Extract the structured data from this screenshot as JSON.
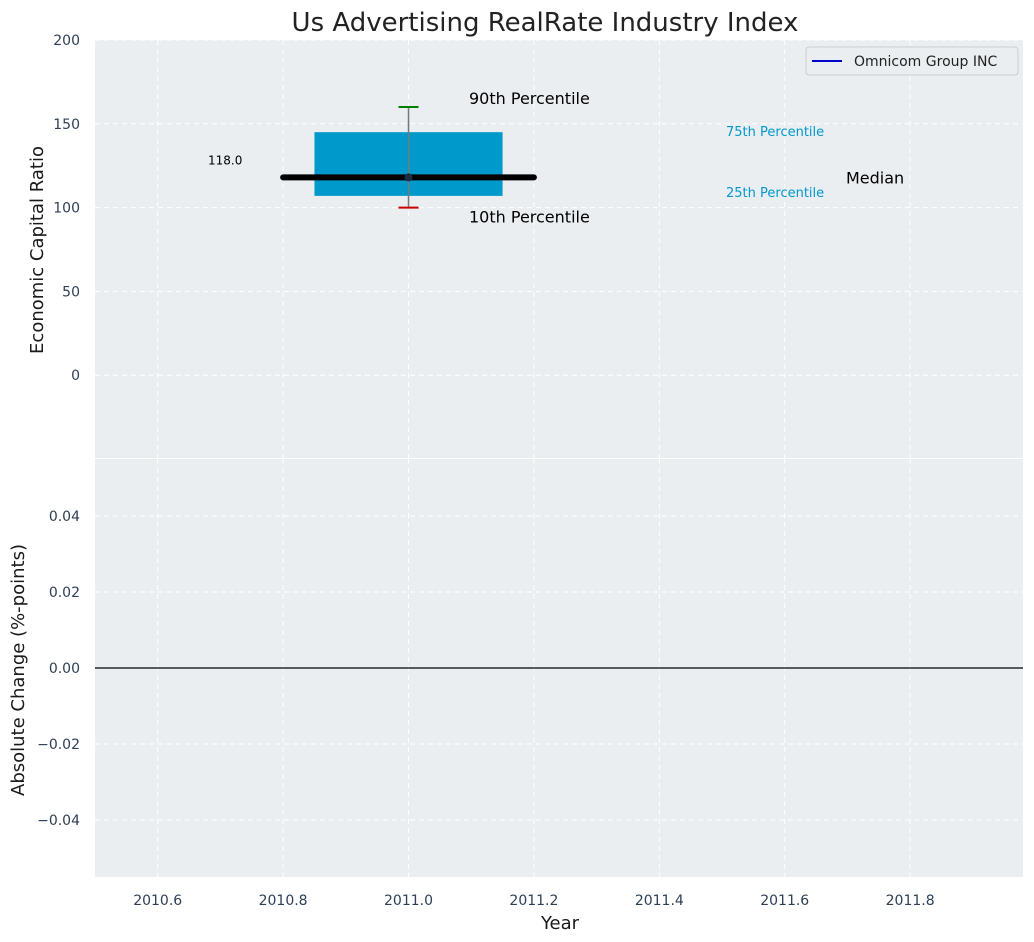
{
  "chart_data": [
    {
      "type": "box",
      "title": "Us Advertising RealRate Industry Index",
      "ylabel": "Economic Capital Ratio",
      "ylim": [
        -50,
        200
      ],
      "yticks": [
        0,
        50,
        100,
        150,
        200
      ],
      "ytick_labels": [
        "0",
        "50",
        "100",
        "150",
        "200"
      ],
      "xlim": [
        2010.5,
        2011.98
      ],
      "grid": true,
      "box": {
        "x": 2011.0,
        "p10": 100,
        "p25": 107,
        "median": 118,
        "p75": 145,
        "p90": 160,
        "x_left": 2010.85,
        "x_right": 2011.15,
        "color": "#0099cc"
      },
      "series": [
        {
          "name": "Omnicom Group INC",
          "x": [
            2010.8,
            2011.0,
            2011.2
          ],
          "y": [
            118,
            118,
            118
          ],
          "color": "#000000",
          "legend_color": "#0000cc"
        }
      ],
      "value_label": "118.0",
      "annotations": {
        "p90": "90th Percentile",
        "p10": "10th Percentile",
        "p75": "75th Percentile",
        "p25": "25th Percentile",
        "median": "Median"
      },
      "legend": {
        "position": "top-right",
        "entries": [
          "Omnicom Group INC"
        ]
      },
      "colors": {
        "p90_cap": "#008000",
        "p10_cap": "#cc0000",
        "percentile_text": "#0099cc",
        "background": "#eaeef0"
      }
    },
    {
      "type": "line",
      "xlabel": "Year",
      "ylabel": "Absolute Change (%-points)",
      "ylim": [
        -0.055,
        0.055
      ],
      "yticks": [
        -0.04,
        -0.02,
        0.0,
        0.02,
        0.04
      ],
      "ytick_labels": [
        "−0.04",
        "−0.02",
        "0.00",
        "0.02",
        "0.04"
      ],
      "xlim": [
        2010.5,
        2011.98
      ],
      "xticks": [
        2010.6,
        2010.8,
        2011.0,
        2011.2,
        2011.4,
        2011.6,
        2011.8
      ],
      "xtick_labels": [
        "2010.6",
        "2010.8",
        "2011.0",
        "2011.2",
        "2011.4",
        "2011.6",
        "2011.8"
      ],
      "grid": true,
      "reference_line": 0.0,
      "series": []
    }
  ]
}
